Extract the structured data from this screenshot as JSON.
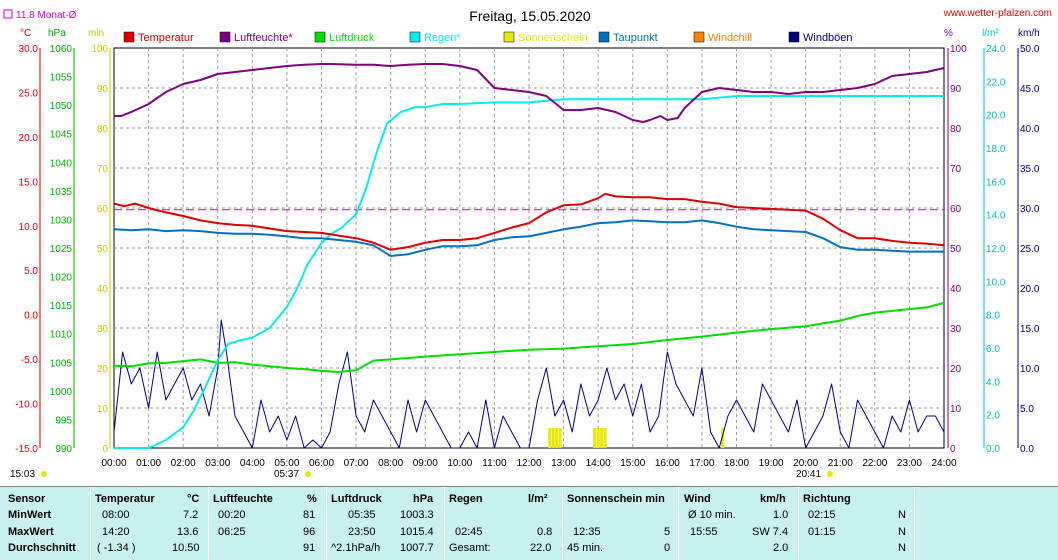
{
  "site": "www.wetter-pfalzen.com",
  "title": "Freitag, 15.05.2020",
  "monthly_avg_label": "11.8 Monat-Ø",
  "top_unit_labels": {
    "celsius": "°C",
    "hpa": "hPa",
    "min": "min",
    "percent": "%",
    "lm2": "l/m²",
    "kmh": "km/h"
  },
  "sunrise_label": "05:37",
  "sunset_label": "20:41",
  "time_left_label": "15:03",
  "chart_data": {
    "type": "line",
    "x_unit": "hours",
    "x_ticks": [
      "00:00",
      "01:00",
      "02:00",
      "03:00",
      "04:00",
      "05:00",
      "06:00",
      "07:00",
      "08:00",
      "09:00",
      "10:00",
      "11:00",
      "12:00",
      "13:00",
      "14:00",
      "15:00",
      "16:00",
      "17:00",
      "18:00",
      "19:00",
      "20:00",
      "21:00",
      "22:00",
      "23:00",
      "24:00"
    ],
    "axes": {
      "temperature_c": {
        "range": [
          -15,
          30
        ],
        "ticks": [
          "30.0",
          "25.0",
          "20.0",
          "15.0",
          "10.0",
          "5.0",
          "0.0",
          "-5.0",
          "-10.0",
          "-15.0"
        ]
      },
      "pressure_hpa": {
        "range": [
          990,
          1060
        ],
        "ticks": [
          "1060",
          "1055",
          "1050",
          "1045",
          "1040",
          "1035",
          "1030",
          "1025",
          "1020",
          "1015",
          "1010",
          "1005",
          "1000",
          "995",
          "990"
        ]
      },
      "sunshine_min": {
        "range": [
          0,
          100
        ],
        "ticks": [
          "100",
          "90",
          "80",
          "70",
          "60",
          "50",
          "40",
          "30",
          "20",
          "10",
          "0"
        ]
      },
      "humidity_pct": {
        "range": [
          0,
          100
        ],
        "ticks": [
          "100",
          "90",
          "80",
          "70",
          "60",
          "50",
          "40",
          "30",
          "20",
          "10",
          "0"
        ]
      },
      "rain_lm2": {
        "range": [
          0,
          25
        ],
        "ticks": [
          "24.0",
          "22.0",
          "20.0",
          "18.0",
          "16.0",
          "14.0",
          "12.0",
          "10.0",
          "8.0",
          "6.0",
          "4.0",
          "2.0",
          "0.0"
        ]
      },
      "wind_kmh": {
        "range": [
          0,
          50
        ],
        "ticks": [
          "50.0",
          "45.0",
          "40.0",
          "35.0",
          "30.0",
          "25.0",
          "20.0",
          "15.0",
          "10.0",
          "5.0",
          "0.0"
        ]
      }
    },
    "legend": [
      {
        "name": "Temperatur",
        "color": "#dd0000"
      },
      {
        "name": "Luftfeuchte*",
        "color": "#800080"
      },
      {
        "name": "Luftdruck",
        "color": "#00dd00"
      },
      {
        "name": "Regen*",
        "color": "#00eeee"
      },
      {
        "name": "Sonnenschein",
        "color": "#e8e800"
      },
      {
        "name": "Taupunkt",
        "color": "#0070c0"
      },
      {
        "name": "Windchill",
        "color": "#ff8000"
      },
      {
        "name": "Windböen",
        "color": "#000080"
      }
    ],
    "reference_line": {
      "axis": "temperature_c",
      "value": 11.8,
      "color": "#cc00cc"
    },
    "series": [
      {
        "name": "Temperatur",
        "axis": "temperature_c",
        "color": "#dd0000",
        "x": [
          0,
          0.3,
          0.6,
          1,
          1.5,
          2,
          2.5,
          3,
          3.5,
          4,
          5,
          5.5,
          6,
          6.5,
          7,
          7.5,
          8,
          8.5,
          9,
          9.5,
          10,
          10.5,
          11,
          11.5,
          12,
          12.5,
          13,
          13.5,
          14,
          14.2,
          14.5,
          15,
          15.5,
          16,
          16.5,
          17,
          17.5,
          18,
          18.5,
          19,
          19.5,
          20,
          20.5,
          21,
          21.5,
          22,
          22.5,
          23,
          23.5,
          24
        ],
        "y": [
          12.5,
          12.2,
          12.5,
          12,
          11.5,
          11.1,
          10.6,
          10.3,
          10.1,
          10,
          9.4,
          9.3,
          9.2,
          8.9,
          8.6,
          8.1,
          7.3,
          7.6,
          8.1,
          8.4,
          8.4,
          8.6,
          9.2,
          9.8,
          10.3,
          11.5,
          12.3,
          12.4,
          13.1,
          13.6,
          13.3,
          13.2,
          13.2,
          13,
          13,
          12.7,
          12.5,
          12.1,
          12,
          11.9,
          11.8,
          11.7,
          10.8,
          9.5,
          8.6,
          8.6,
          8.3,
          8.1,
          8,
          7.8
        ]
      },
      {
        "name": "Luftfeuchte",
        "axis": "humidity_pct",
        "color": "#800080",
        "x": [
          0,
          0.2,
          0.5,
          1,
          1.5,
          2,
          2.5,
          3,
          3.5,
          4,
          4.5,
          5,
          5.5,
          6,
          6.25,
          7,
          7.5,
          8,
          8.5,
          9,
          9.5,
          10,
          10.5,
          11,
          11.5,
          12,
          12.5,
          13,
          13.5,
          14,
          14.5,
          15,
          15.3,
          15.5,
          15.8,
          16,
          16.3,
          16.5,
          17,
          17.5,
          18,
          18.5,
          19,
          19.5,
          20,
          20.5,
          21,
          21.5,
          22,
          22.5,
          23,
          23.5,
          24
        ],
        "y": [
          83,
          83,
          84,
          86,
          89,
          91,
          92,
          93.5,
          94,
          94.5,
          95,
          95.5,
          95.8,
          96,
          96,
          95.8,
          95.8,
          95.5,
          95.8,
          96,
          96,
          95.5,
          94.5,
          90,
          89.5,
          89,
          88,
          84.5,
          84.5,
          85,
          84,
          82,
          81.5,
          82,
          83,
          82,
          82.5,
          85,
          89,
          90,
          89.5,
          89,
          89,
          88.5,
          89,
          89,
          89.5,
          90,
          91,
          93,
          93.5,
          94,
          95
        ]
      },
      {
        "name": "Luftdruck",
        "axis": "pressure_hpa",
        "color": "#00dd00",
        "x": [
          0,
          0.5,
          1,
          1.5,
          2,
          2.5,
          3,
          3.5,
          4,
          4.5,
          5,
          5.5,
          6,
          6.5,
          7,
          7.5,
          8,
          9,
          10,
          11,
          12,
          13,
          14,
          15,
          16,
          17,
          18,
          19,
          20,
          20.5,
          21,
          21.5,
          22,
          22.5,
          23,
          23.5,
          24
        ],
        "y": [
          1004.4,
          1004.3,
          1004.8,
          1004.9,
          1005.2,
          1005.5,
          1004.9,
          1005,
          1004.6,
          1004.3,
          1004,
          1003.8,
          1003.5,
          1003.3,
          1003.6,
          1005.3,
          1005.5,
          1006,
          1006.4,
          1006.8,
          1007.2,
          1007.4,
          1007.8,
          1008.2,
          1008.9,
          1009.5,
          1010.2,
          1010.8,
          1011.3,
          1011.8,
          1012.3,
          1013.1,
          1013.7,
          1014,
          1014.3,
          1014.6,
          1015.4
        ]
      },
      {
        "name": "Regen",
        "axis": "rain_lm2",
        "color": "#00eeee",
        "x": [
          0,
          0.5,
          1,
          1.5,
          2,
          2.3,
          2.75,
          3,
          3.3,
          3.6,
          4,
          4.5,
          5,
          5.3,
          5.6,
          6,
          6.3,
          6.6,
          7,
          7.3,
          7.6,
          7.9,
          8.3,
          8.7,
          9,
          9.5,
          10,
          11,
          12,
          13,
          14,
          15,
          16,
          17,
          17.5,
          18,
          18.5,
          20,
          21,
          22,
          23,
          24
        ],
        "y": [
          0,
          0,
          0,
          0.5,
          1.3,
          2.3,
          4.3,
          5.5,
          6.5,
          6.7,
          6.9,
          7.5,
          8.8,
          10,
          11.5,
          12.8,
          13.4,
          13.8,
          14.6,
          16.3,
          18.5,
          20.3,
          21,
          21.3,
          21.3,
          21.5,
          21.5,
          21.6,
          21.6,
          21.8,
          21.8,
          21.8,
          21.8,
          21.8,
          21.9,
          22,
          22,
          22,
          22,
          22,
          22,
          22
        ]
      },
      {
        "name": "Taupunkt",
        "axis": "temperature_c",
        "color": "#0070c0",
        "x": [
          0,
          0.5,
          1,
          1.5,
          2,
          2.5,
          3,
          3.5,
          4,
          4.5,
          5,
          5.5,
          6,
          6.5,
          7,
          7.5,
          8,
          8.5,
          9,
          9.5,
          10,
          10.5,
          11,
          11.5,
          12,
          12.5,
          13,
          13.5,
          14,
          14.5,
          15,
          15.5,
          16,
          16.5,
          17,
          17.5,
          18,
          18.5,
          19,
          19.5,
          20,
          20.5,
          21,
          21.5,
          22,
          22.5,
          23,
          23.5,
          24
        ],
        "y": [
          9.6,
          9.5,
          9.6,
          9.4,
          9.5,
          9.4,
          9.2,
          9.1,
          9.1,
          9,
          8.8,
          8.6,
          8.6,
          8.4,
          8.2,
          7.8,
          6.6,
          6.8,
          7.3,
          7.7,
          7.7,
          7.8,
          8.4,
          8.7,
          8.8,
          9.2,
          9.6,
          9.9,
          10.3,
          10.4,
          10.6,
          10.5,
          10.4,
          10.4,
          10.6,
          10.3,
          9.9,
          9.6,
          9.5,
          9.4,
          9.3,
          8.6,
          7.6,
          7.3,
          7.3,
          7.2,
          7.1,
          7.1,
          7.1
        ]
      },
      {
        "name": "Windböen",
        "axis": "wind_kmh",
        "color": "#000080",
        "x": [
          0,
          0.25,
          0.5,
          0.75,
          1,
          1.25,
          1.5,
          1.75,
          2,
          2.25,
          2.5,
          2.75,
          3,
          3.1,
          3.25,
          3.5,
          3.75,
          4,
          4.25,
          4.5,
          4.75,
          5,
          5.25,
          5.5,
          5.75,
          6,
          6.25,
          6.5,
          6.75,
          7,
          7.25,
          7.5,
          7.75,
          8,
          8.25,
          8.5,
          8.75,
          9,
          9.25,
          9.5,
          9.75,
          10,
          10.25,
          10.5,
          10.75,
          11,
          11.25,
          11.5,
          11.75,
          12,
          12.25,
          12.5,
          12.75,
          13,
          13.25,
          13.5,
          13.75,
          14,
          14.25,
          14.5,
          14.75,
          15,
          15.25,
          15.5,
          15.75,
          16,
          16.25,
          16.5,
          16.75,
          17,
          17.25,
          17.5,
          17.75,
          18,
          18.25,
          18.5,
          18.75,
          19,
          19.25,
          19.5,
          19.75,
          20,
          20.25,
          20.5,
          20.75,
          21,
          21.25,
          21.5,
          21.75,
          22,
          22.25,
          22.5,
          22.75,
          23,
          23.25,
          23.5,
          23.75,
          24
        ],
        "y": [
          2,
          12,
          8,
          10,
          5,
          12,
          6,
          8,
          10,
          6,
          8,
          4,
          10,
          16,
          12,
          4,
          2,
          0,
          6,
          2,
          4,
          1,
          4,
          0,
          1,
          0,
          2,
          8,
          12,
          4,
          2,
          6,
          4,
          2,
          0,
          6,
          2,
          6,
          4,
          2,
          0,
          0,
          2,
          0,
          6,
          0,
          4,
          2,
          0,
          0,
          6,
          10,
          4,
          6,
          2,
          8,
          4,
          6,
          10,
          6,
          8,
          4,
          8,
          2,
          4,
          12,
          8,
          6,
          4,
          10,
          2,
          0,
          4,
          6,
          4,
          2,
          8,
          6,
          4,
          2,
          6,
          0,
          2,
          4,
          8,
          2,
          0,
          6,
          4,
          2,
          0,
          4,
          2,
          6,
          2,
          4,
          4,
          2
        ]
      }
    ],
    "sunshine_bars": [
      12.6,
      12.7,
      12.8,
      12.9,
      13.9,
      14.0,
      14.1,
      14.2,
      17.6
    ]
  },
  "stats": {
    "row_labels": [
      "Sensor",
      "MinWert",
      "MaxWert",
      "Durchschnitt"
    ],
    "columns": [
      {
        "header": "Temperatur",
        "unit": "°C",
        "rows": [
          [
            "08:00",
            "7.2"
          ],
          [
            "14:20",
            "13.6"
          ],
          [
            "( -1.34 )",
            "10.50"
          ]
        ]
      },
      {
        "header": "Luftfeuchte",
        "unit": "%",
        "rows": [
          [
            "00:20",
            "81"
          ],
          [
            "06:25",
            "96"
          ],
          [
            "",
            "91"
          ]
        ]
      },
      {
        "header": "Luftdruck",
        "unit": "hPa",
        "rows": [
          [
            "05:35",
            "1003.3"
          ],
          [
            "23:50",
            "1015.4"
          ],
          [
            "^2.1hPa/h",
            "1007.7"
          ]
        ]
      },
      {
        "header": "Regen",
        "unit": "l/m²",
        "rows": [
          [
            "",
            ""
          ],
          [
            "02:45",
            "0.8"
          ],
          [
            "Gesamt:",
            "22.0"
          ]
        ]
      },
      {
        "header": "Sonnenschein min",
        "unit": "",
        "rows": [
          [
            "",
            ""
          ],
          [
            "12:35",
            "5"
          ],
          [
            "45 min.",
            "0"
          ]
        ]
      },
      {
        "header": "Wind",
        "unit": "km/h",
        "rows": [
          [
            "Ø 10 min.",
            "1.0"
          ],
          [
            "15:55",
            "SW 7.4"
          ],
          [
            "",
            "2.0"
          ]
        ]
      },
      {
        "header": "Richtung",
        "unit": "",
        "rows": [
          [
            "02:15",
            "N"
          ],
          [
            "01:15",
            "N"
          ],
          [
            "",
            "N"
          ]
        ]
      }
    ]
  }
}
